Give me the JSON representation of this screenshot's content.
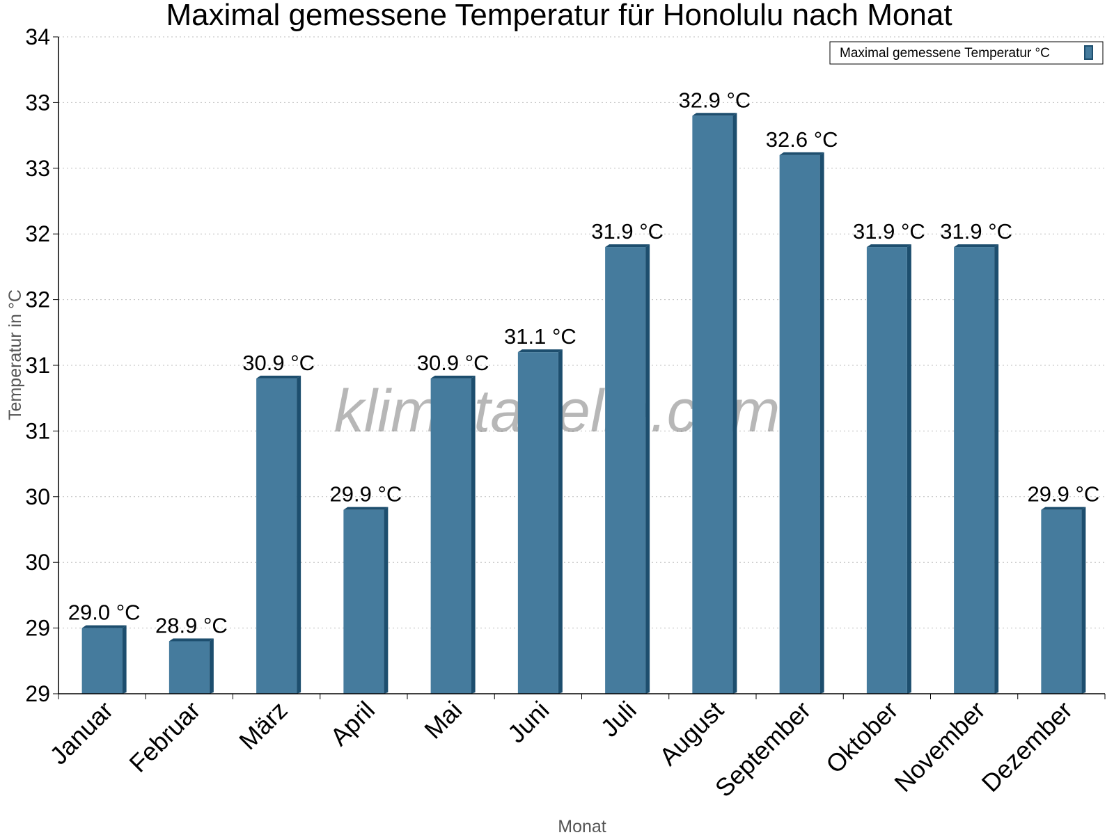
{
  "watermark": "klimatabelle.com",
  "chart_data": {
    "type": "bar",
    "title": "Maximal gemessene Temperatur für Honolulu nach Monat",
    "xlabel": "Monat",
    "ylabel": "Temperatur in °C",
    "ylim": [
      28.5,
      33.5
    ],
    "y_tick_values": [
      28.5,
      29,
      29.5,
      30,
      30.5,
      31,
      31.5,
      32,
      32.5,
      33,
      33.5
    ],
    "y_tick_labels": [
      "29",
      "29",
      "30",
      "30",
      "31",
      "31",
      "32",
      "32",
      "33",
      "33",
      "34"
    ],
    "grid": true,
    "legend_position": "top-right",
    "color": "#457b9d",
    "side_color": "#1d4e6e",
    "series": [
      {
        "name": "Maximal gemessene Temperatur °C",
        "values": [
          29.0,
          28.9,
          30.9,
          29.9,
          30.9,
          31.1,
          31.9,
          32.9,
          32.6,
          31.9,
          31.9,
          29.9
        ],
        "labels": [
          "29.0 °C",
          "28.9 °C",
          "30.9 °C",
          "29.9 °C",
          "30.9 °C",
          "31.1 °C",
          "31.9 °C",
          "32.9 °C",
          "32.6 °C",
          "31.9 °C",
          "31.9 °C",
          "29.9 °C"
        ]
      }
    ],
    "categories": [
      "Januar",
      "Februar",
      "März",
      "April",
      "Mai",
      "Juni",
      "Juli",
      "August",
      "September",
      "Oktober",
      "November",
      "Dezember"
    ]
  }
}
